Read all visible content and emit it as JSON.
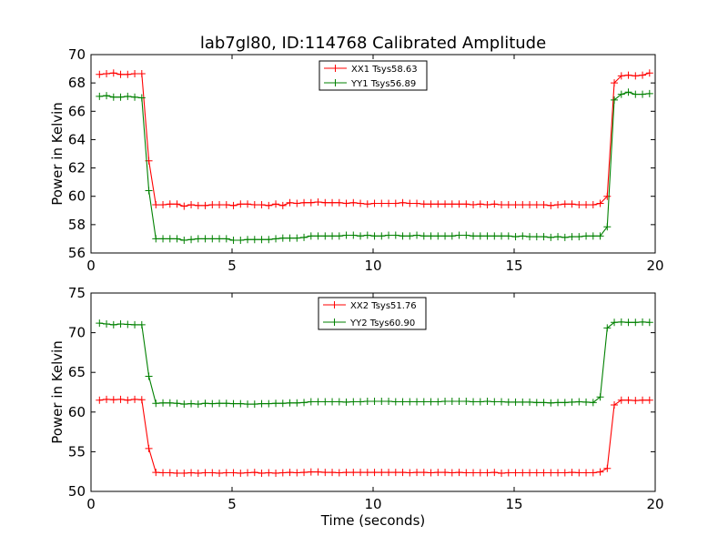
{
  "title": "lab7gl80, ID:114768 Calibrated Amplitude",
  "xlabel": "Time (seconds)",
  "chart_data": [
    {
      "type": "line",
      "title": "lab7gl80, ID:114768 Calibrated Amplitude",
      "xlabel": "",
      "ylabel": "Power in Kelvin",
      "xlim": [
        0,
        20
      ],
      "ylim": [
        56,
        70
      ],
      "x_ticks": [
        "0",
        "5",
        "10",
        "15",
        "20"
      ],
      "y_ticks": [
        "56",
        "58",
        "60",
        "62",
        "64",
        "66",
        "68",
        "70"
      ],
      "legend_position": "top-center",
      "x": [
        0.3,
        0.55,
        0.8,
        1.05,
        1.3,
        1.55,
        1.8,
        2.05,
        2.3,
        2.55,
        2.8,
        3.05,
        3.3,
        3.55,
        3.8,
        4.05,
        4.3,
        4.55,
        4.8,
        5.05,
        5.3,
        5.55,
        5.8,
        6.05,
        6.3,
        6.55,
        6.8,
        7.05,
        7.3,
        7.55,
        7.8,
        8.05,
        8.3,
        8.55,
        8.8,
        9.05,
        9.3,
        9.55,
        9.8,
        10.05,
        10.3,
        10.55,
        10.8,
        11.05,
        11.3,
        11.55,
        11.8,
        12.05,
        12.3,
        12.55,
        12.8,
        13.05,
        13.3,
        13.55,
        13.8,
        14.05,
        14.3,
        14.55,
        14.8,
        15.05,
        15.3,
        15.55,
        15.8,
        16.05,
        16.3,
        16.55,
        16.8,
        17.05,
        17.3,
        17.55,
        17.8,
        18.05,
        18.3,
        18.55,
        18.8,
        19.05,
        19.3,
        19.55,
        19.8
      ],
      "series": [
        {
          "name": "XX1 Tsys58.63",
          "color": "#ff0000",
          "values": [
            68.6,
            68.65,
            68.7,
            68.6,
            68.6,
            68.65,
            68.65,
            62.5,
            59.4,
            59.4,
            59.45,
            59.45,
            59.3,
            59.4,
            59.35,
            59.35,
            59.4,
            59.4,
            59.4,
            59.35,
            59.45,
            59.45,
            59.4,
            59.4,
            59.35,
            59.45,
            59.35,
            59.55,
            59.5,
            59.55,
            59.55,
            59.6,
            59.55,
            59.55,
            59.55,
            59.5,
            59.55,
            59.5,
            59.45,
            59.5,
            59.5,
            59.5,
            59.5,
            59.55,
            59.5,
            59.5,
            59.45,
            59.45,
            59.45,
            59.45,
            59.45,
            59.45,
            59.45,
            59.4,
            59.45,
            59.4,
            59.45,
            59.4,
            59.4,
            59.4,
            59.4,
            59.4,
            59.4,
            59.4,
            59.35,
            59.4,
            59.45,
            59.45,
            59.4,
            59.4,
            59.4,
            59.5,
            60.0,
            68.0,
            68.5,
            68.55,
            68.5,
            68.55,
            68.7
          ]
        },
        {
          "name": "YY1 Tsys56.89",
          "color": "#008000",
          "values": [
            67.05,
            67.1,
            67.0,
            67.0,
            67.05,
            67.0,
            66.95,
            60.4,
            57.0,
            57.0,
            57.0,
            57.0,
            56.9,
            56.95,
            57.0,
            57.0,
            57.0,
            57.0,
            57.0,
            56.9,
            56.9,
            56.95,
            56.95,
            56.95,
            56.95,
            57.0,
            57.05,
            57.05,
            57.05,
            57.1,
            57.2,
            57.2,
            57.2,
            57.2,
            57.2,
            57.25,
            57.25,
            57.2,
            57.25,
            57.2,
            57.2,
            57.25,
            57.25,
            57.2,
            57.2,
            57.25,
            57.2,
            57.2,
            57.2,
            57.2,
            57.2,
            57.25,
            57.25,
            57.2,
            57.2,
            57.2,
            57.2,
            57.2,
            57.2,
            57.15,
            57.2,
            57.15,
            57.15,
            57.15,
            57.1,
            57.15,
            57.1,
            57.15,
            57.15,
            57.2,
            57.2,
            57.2,
            57.85,
            66.8,
            67.2,
            67.35,
            67.2,
            67.2,
            67.25
          ]
        }
      ]
    },
    {
      "type": "line",
      "title": "",
      "xlabel": "Time (seconds)",
      "ylabel": "Power in Kelvin",
      "xlim": [
        0,
        20
      ],
      "ylim": [
        50,
        75
      ],
      "x_ticks": [
        "0",
        "5",
        "10",
        "15",
        "20"
      ],
      "y_ticks": [
        "50",
        "55",
        "60",
        "65",
        "70",
        "75"
      ],
      "legend_position": "top-center",
      "x": [
        0.3,
        0.55,
        0.8,
        1.05,
        1.3,
        1.55,
        1.8,
        2.05,
        2.3,
        2.55,
        2.8,
        3.05,
        3.3,
        3.55,
        3.8,
        4.05,
        4.3,
        4.55,
        4.8,
        5.05,
        5.3,
        5.55,
        5.8,
        6.05,
        6.3,
        6.55,
        6.8,
        7.05,
        7.3,
        7.55,
        7.8,
        8.05,
        8.3,
        8.55,
        8.8,
        9.05,
        9.3,
        9.55,
        9.8,
        10.05,
        10.3,
        10.55,
        10.8,
        11.05,
        11.3,
        11.55,
        11.8,
        12.05,
        12.3,
        12.55,
        12.8,
        13.05,
        13.3,
        13.55,
        13.8,
        14.05,
        14.3,
        14.55,
        14.8,
        15.05,
        15.3,
        15.55,
        15.8,
        16.05,
        16.3,
        16.55,
        16.8,
        17.05,
        17.3,
        17.55,
        17.8,
        18.05,
        18.3,
        18.55,
        18.8,
        19.05,
        19.3,
        19.55,
        19.8
      ],
      "series": [
        {
          "name": "XX2 Tsys51.76",
          "color": "#ff0000",
          "values": [
            61.5,
            61.6,
            61.55,
            61.6,
            61.5,
            61.6,
            61.55,
            55.4,
            52.4,
            52.35,
            52.35,
            52.3,
            52.3,
            52.35,
            52.3,
            52.35,
            52.35,
            52.3,
            52.35,
            52.35,
            52.3,
            52.35,
            52.4,
            52.3,
            52.35,
            52.3,
            52.35,
            52.4,
            52.35,
            52.4,
            52.45,
            52.45,
            52.4,
            52.4,
            52.35,
            52.4,
            52.4,
            52.4,
            52.4,
            52.4,
            52.4,
            52.4,
            52.4,
            52.4,
            52.35,
            52.4,
            52.4,
            52.35,
            52.4,
            52.4,
            52.35,
            52.4,
            52.35,
            52.35,
            52.35,
            52.35,
            52.4,
            52.3,
            52.35,
            52.35,
            52.35,
            52.35,
            52.35,
            52.35,
            52.35,
            52.35,
            52.35,
            52.4,
            52.35,
            52.35,
            52.35,
            52.45,
            52.9,
            60.9,
            61.5,
            61.5,
            61.45,
            61.5,
            61.5
          ]
        },
        {
          "name": "YY2 Tsys60.90",
          "color": "#008000",
          "values": [
            71.2,
            71.1,
            71.0,
            71.1,
            71.05,
            71.0,
            71.0,
            64.5,
            61.1,
            61.15,
            61.15,
            61.1,
            61.0,
            61.05,
            61.0,
            61.1,
            61.05,
            61.1,
            61.1,
            61.05,
            61.05,
            61.0,
            61.0,
            61.05,
            61.05,
            61.1,
            61.1,
            61.15,
            61.15,
            61.2,
            61.3,
            61.3,
            61.3,
            61.3,
            61.3,
            61.25,
            61.3,
            61.3,
            61.35,
            61.35,
            61.35,
            61.35,
            61.3,
            61.3,
            61.3,
            61.3,
            61.3,
            61.3,
            61.3,
            61.35,
            61.35,
            61.35,
            61.35,
            61.3,
            61.3,
            61.35,
            61.3,
            61.3,
            61.25,
            61.25,
            61.25,
            61.25,
            61.2,
            61.2,
            61.15,
            61.2,
            61.2,
            61.25,
            61.3,
            61.25,
            61.2,
            61.9,
            70.6,
            71.3,
            71.35,
            71.3,
            71.3,
            71.35,
            71.3
          ]
        }
      ]
    }
  ]
}
